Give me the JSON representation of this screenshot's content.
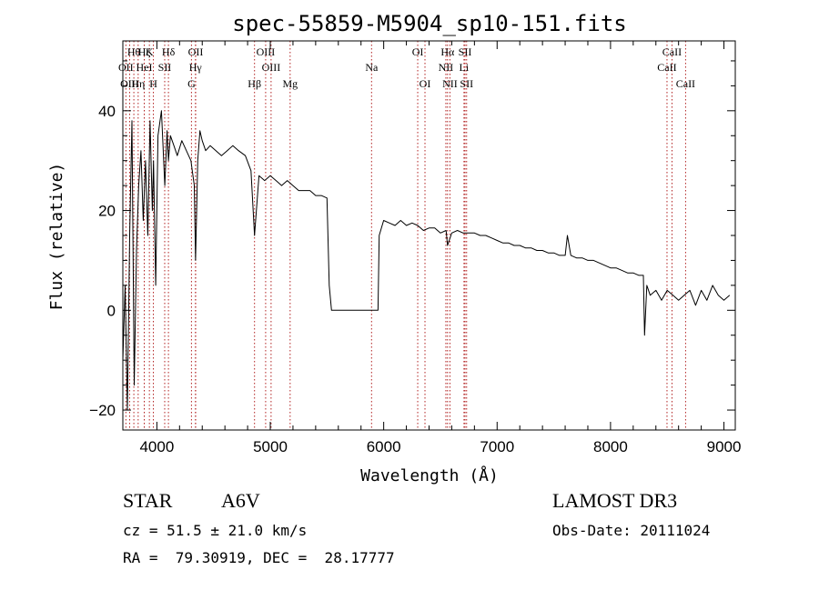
{
  "chart_data": {
    "type": "line",
    "title": "spec-55859-M5904_sp10-151.fits",
    "xlabel": "Wavelength (Å)",
    "ylabel": "Flux (relative)",
    "xlim": [
      3700,
      9100
    ],
    "ylim": [
      -24,
      54
    ],
    "x_ticks": [
      4000,
      5000,
      6000,
      7000,
      8000,
      9000
    ],
    "y_ticks": [
      -20,
      0,
      20,
      40
    ],
    "series": [
      {
        "name": "flux",
        "x": [
          3700,
          3720,
          3740,
          3760,
          3780,
          3800,
          3820,
          3840,
          3860,
          3880,
          3900,
          3920,
          3940,
          3960,
          3970,
          3990,
          4010,
          4040,
          4070,
          4090,
          4102,
          4120,
          4150,
          4180,
          4220,
          4260,
          4300,
          4330,
          4341,
          4360,
          4380,
          4400,
          4430,
          4470,
          4520,
          4570,
          4620,
          4670,
          4720,
          4780,
          4830,
          4861,
          4900,
          4950,
          5000,
          5050,
          5100,
          5150,
          5200,
          5250,
          5300,
          5350,
          5400,
          5450,
          5500,
          5520,
          5540,
          5600,
          5700,
          5800,
          5900,
          5950,
          5960,
          6000,
          6050,
          6100,
          6150,
          6200,
          6250,
          6300,
          6350,
          6400,
          6450,
          6500,
          6550,
          6563,
          6600,
          6650,
          6700,
          6750,
          6800,
          6850,
          6900,
          6950,
          7000,
          7050,
          7100,
          7150,
          7200,
          7250,
          7300,
          7350,
          7400,
          7450,
          7500,
          7550,
          7600,
          7620,
          7650,
          7700,
          7750,
          7800,
          7850,
          7900,
          7950,
          8000,
          8050,
          8100,
          8150,
          8200,
          8250,
          8290,
          8300,
          8320,
          8350,
          8400,
          8450,
          8500,
          8550,
          8600,
          8650,
          8700,
          8750,
          8800,
          8850,
          8900,
          8950,
          9000,
          9050
        ],
        "y": [
          -10,
          5,
          -20,
          15,
          38,
          -15,
          12,
          25,
          32,
          18,
          30,
          15,
          38,
          20,
          30,
          5,
          35,
          40,
          25,
          36,
          30,
          35,
          33,
          31,
          34,
          32,
          30,
          25,
          10,
          30,
          36,
          34,
          32,
          33,
          32,
          31,
          32,
          33,
          32,
          31,
          28,
          15,
          27,
          26,
          27,
          26,
          25,
          26,
          25,
          24,
          24,
          24,
          23,
          23,
          22.5,
          5,
          0,
          0,
          0,
          0,
          0,
          0,
          15,
          18,
          17.5,
          17,
          18,
          17,
          17.5,
          17,
          16,
          16.5,
          16.5,
          15.5,
          16,
          13,
          15.5,
          16,
          15.5,
          15.5,
          15.5,
          15,
          15,
          14.5,
          14,
          13.5,
          13.5,
          13,
          13,
          12.5,
          12.5,
          12,
          12,
          11.5,
          11.5,
          11,
          11,
          15,
          11,
          10.5,
          10.5,
          10,
          10,
          9.5,
          9,
          8.5,
          8.5,
          8,
          7.5,
          7.5,
          7,
          7,
          -5,
          5,
          3,
          4,
          2,
          4,
          3,
          2,
          3,
          4,
          1,
          4,
          2,
          5,
          3,
          2,
          3
        ]
      }
    ],
    "lines": {
      "row1": [
        {
          "label": "Hθ",
          "x": 3797
        },
        {
          "label": "Hζ",
          "x": 3889
        },
        {
          "label": "K",
          "x": 3934
        },
        {
          "label": "Hδ",
          "x": 4102
        },
        {
          "label": "OII",
          "x": 4342
        },
        {
          "label": "OIII",
          "x": 4959
        },
        {
          "label": "OI",
          "x": 6300
        },
        {
          "label": "Hα",
          "x": 6563
        },
        {
          "label": "SII",
          "x": 6717
        },
        {
          "label": "CaII",
          "x": 8542
        }
      ],
      "row2": [
        {
          "label": "OII",
          "x": 3727
        },
        {
          "label": "HeI",
          "x": 3889
        },
        {
          "label": "SII",
          "x": 4069
        },
        {
          "label": "Hγ",
          "x": 4340
        },
        {
          "label": "OIII",
          "x": 5007
        },
        {
          "label": "Na",
          "x": 5893
        },
        {
          "label": "NII",
          "x": 6548
        },
        {
          "label": "Li",
          "x": 6708
        },
        {
          "label": "CaII",
          "x": 8498
        }
      ],
      "row3": [
        {
          "label": "OIII",
          "x": 3760
        },
        {
          "label": "Hη",
          "x": 3835
        },
        {
          "label": "H",
          "x": 3969
        },
        {
          "label": "G",
          "x": 4305
        },
        {
          "label": "Hβ",
          "x": 4861
        },
        {
          "label": "Mg",
          "x": 5175
        },
        {
          "label": "OI",
          "x": 6364
        },
        {
          "label": "NII",
          "x": 6584
        },
        {
          "label": "SII",
          "x": 6731
        },
        {
          "label": "CaII",
          "x": 8662
        }
      ]
    }
  },
  "footer": {
    "object_class": "STAR",
    "subclass": "A6V",
    "survey": "LAMOST DR3",
    "cz": "cz = 51.5 ± 21.0 km/s",
    "obs_date": "Obs-Date: 20111024",
    "coords": "RA =  79.30919, DEC =  28.17777"
  },
  "colors": {
    "spectrum": "#000000",
    "line_markers": "#b22222",
    "axes": "#000000"
  }
}
